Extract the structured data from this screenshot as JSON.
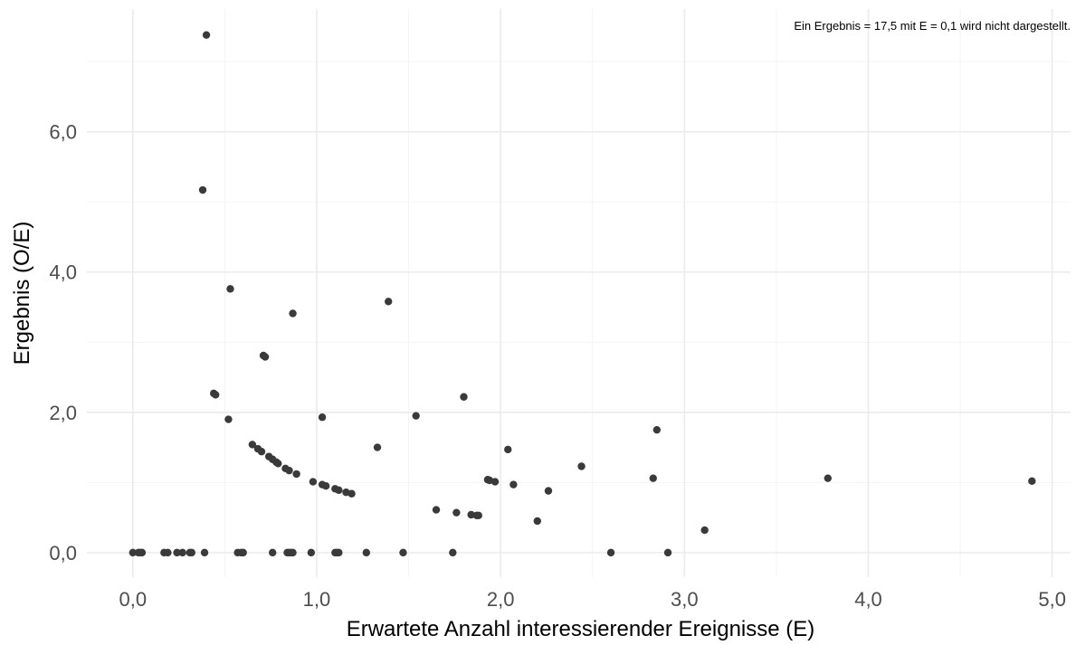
{
  "chart_data": {
    "type": "scatter",
    "xlabel": "Erwartete Anzahl interessierender Ereignisse (E)",
    "ylabel": "Ergebnis (O/E)",
    "annotation": "Ein Ergebnis = 17,5 mit E = 0,1 wird nicht dargestellt.",
    "xlim": [
      -0.25,
      5.1
    ],
    "ylim": [
      -0.35,
      7.75
    ],
    "x_ticks": [
      0,
      1,
      2,
      3,
      4,
      5
    ],
    "x_tick_labels": [
      "0,0",
      "1,0",
      "2,0",
      "3,0",
      "4,0",
      "5,0"
    ],
    "y_ticks": [
      0,
      2,
      4,
      6
    ],
    "y_tick_labels": [
      "0,0",
      "2,0",
      "4,0",
      "6,0"
    ],
    "x_minor_ticks": [
      0.5,
      1.5,
      2.5,
      3.5,
      4.5
    ],
    "y_minor_ticks": [
      1,
      3,
      5,
      7
    ],
    "grid": true,
    "point_color": "#3a3a3a",
    "points": [
      {
        "x": 0.4,
        "y": 7.38
      },
      {
        "x": 0.38,
        "y": 5.17
      },
      {
        "x": 0.53,
        "y": 3.76
      },
      {
        "x": 0.87,
        "y": 3.41
      },
      {
        "x": 1.39,
        "y": 3.58
      },
      {
        "x": 0.71,
        "y": 2.81
      },
      {
        "x": 0.72,
        "y": 2.79
      },
      {
        "x": 0.44,
        "y": 2.27
      },
      {
        "x": 0.45,
        "y": 2.25
      },
      {
        "x": 1.8,
        "y": 2.22
      },
      {
        "x": 0.52,
        "y": 1.9
      },
      {
        "x": 1.03,
        "y": 1.93
      },
      {
        "x": 1.54,
        "y": 1.95
      },
      {
        "x": 2.85,
        "y": 1.75
      },
      {
        "x": 0.65,
        "y": 1.54
      },
      {
        "x": 0.68,
        "y": 1.48
      },
      {
        "x": 0.7,
        "y": 1.44
      },
      {
        "x": 0.74,
        "y": 1.37
      },
      {
        "x": 0.76,
        "y": 1.33
      },
      {
        "x": 0.78,
        "y": 1.29
      },
      {
        "x": 0.79,
        "y": 1.27
      },
      {
        "x": 0.83,
        "y": 1.2
      },
      {
        "x": 0.85,
        "y": 1.17
      },
      {
        "x": 0.89,
        "y": 1.12
      },
      {
        "x": 1.33,
        "y": 1.5
      },
      {
        "x": 2.04,
        "y": 1.47
      },
      {
        "x": 2.44,
        "y": 1.23
      },
      {
        "x": 0.98,
        "y": 1.01
      },
      {
        "x": 1.03,
        "y": 0.97
      },
      {
        "x": 1.05,
        "y": 0.95
      },
      {
        "x": 1.1,
        "y": 0.91
      },
      {
        "x": 1.12,
        "y": 0.89
      },
      {
        "x": 1.16,
        "y": 0.86
      },
      {
        "x": 1.19,
        "y": 0.84
      },
      {
        "x": 1.93,
        "y": 1.04
      },
      {
        "x": 1.94,
        "y": 1.03
      },
      {
        "x": 1.97,
        "y": 1.01
      },
      {
        "x": 2.07,
        "y": 0.97
      },
      {
        "x": 2.26,
        "y": 0.88
      },
      {
        "x": 2.83,
        "y": 1.06
      },
      {
        "x": 3.78,
        "y": 1.06
      },
      {
        "x": 4.89,
        "y": 1.02
      },
      {
        "x": 1.65,
        "y": 0.61
      },
      {
        "x": 1.76,
        "y": 0.57
      },
      {
        "x": 1.84,
        "y": 0.54
      },
      {
        "x": 1.87,
        "y": 0.53
      },
      {
        "x": 1.88,
        "y": 0.53
      },
      {
        "x": 2.2,
        "y": 0.45
      },
      {
        "x": 3.11,
        "y": 0.32
      },
      {
        "x": 0.0,
        "y": 0.0
      },
      {
        "x": 0.03,
        "y": 0.0
      },
      {
        "x": 0.04,
        "y": 0.0
      },
      {
        "x": 0.05,
        "y": 0.0
      },
      {
        "x": 0.17,
        "y": 0.0
      },
      {
        "x": 0.19,
        "y": 0.0
      },
      {
        "x": 0.24,
        "y": 0.0
      },
      {
        "x": 0.27,
        "y": 0.0
      },
      {
        "x": 0.31,
        "y": 0.0
      },
      {
        "x": 0.32,
        "y": 0.0
      },
      {
        "x": 0.39,
        "y": 0.0
      },
      {
        "x": 0.57,
        "y": 0.0
      },
      {
        "x": 0.59,
        "y": 0.0
      },
      {
        "x": 0.6,
        "y": 0.0
      },
      {
        "x": 0.76,
        "y": 0.0
      },
      {
        "x": 0.84,
        "y": 0.0
      },
      {
        "x": 0.85,
        "y": 0.0
      },
      {
        "x": 0.86,
        "y": 0.0
      },
      {
        "x": 0.87,
        "y": 0.0
      },
      {
        "x": 0.97,
        "y": 0.0
      },
      {
        "x": 1.1,
        "y": 0.0
      },
      {
        "x": 1.11,
        "y": 0.0
      },
      {
        "x": 1.12,
        "y": 0.0
      },
      {
        "x": 1.27,
        "y": 0.0
      },
      {
        "x": 1.47,
        "y": 0.0
      },
      {
        "x": 1.74,
        "y": 0.0
      },
      {
        "x": 2.6,
        "y": 0.0
      },
      {
        "x": 2.91,
        "y": 0.0
      }
    ]
  }
}
